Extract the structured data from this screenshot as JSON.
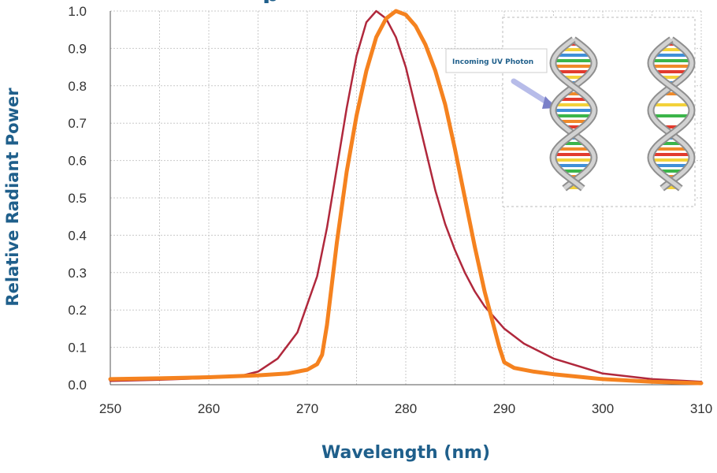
{
  "chart_data": {
    "type": "line",
    "title_fragment": "p",
    "xlabel": "Wavelength (nm)",
    "ylabel": "Relative Radiant Power",
    "xlim": [
      250,
      310
    ],
    "ylim": [
      0,
      1.0
    ],
    "x_ticks": [
      "250",
      "260",
      "270",
      "280",
      "290",
      "300",
      "310"
    ],
    "y_ticks": [
      "0.0",
      "0.1",
      "0.2",
      "0.3",
      "0.4",
      "0.5",
      "0.6",
      "0.7",
      "0.8",
      "0.9",
      "1.0"
    ],
    "grid": true,
    "series": [
      {
        "color": "#b0283c",
        "x": [
          250,
          255,
          260,
          263,
          265,
          267,
          269,
          271,
          272,
          273,
          274,
          275,
          276,
          277,
          278,
          279,
          280,
          281,
          282,
          283,
          284,
          285,
          286,
          287,
          288,
          290,
          292,
          295,
          300,
          305,
          310
        ],
        "y": [
          0.01,
          0.013,
          0.018,
          0.022,
          0.035,
          0.07,
          0.14,
          0.29,
          0.42,
          0.58,
          0.74,
          0.88,
          0.97,
          1.0,
          0.98,
          0.93,
          0.85,
          0.74,
          0.63,
          0.52,
          0.43,
          0.36,
          0.3,
          0.25,
          0.21,
          0.15,
          0.11,
          0.07,
          0.03,
          0.015,
          0.008
        ]
      },
      {
        "color": "#f5821f",
        "x": [
          250,
          255,
          260,
          265,
          268,
          270,
          271,
          271.5,
          272,
          273,
          274,
          275,
          276,
          277,
          278,
          279,
          280,
          281,
          282,
          283,
          284,
          285,
          286,
          287,
          288,
          289,
          289.5,
          290,
          291,
          293,
          295,
          300,
          305,
          310
        ],
        "y": [
          0.015,
          0.017,
          0.02,
          0.025,
          0.03,
          0.04,
          0.055,
          0.08,
          0.16,
          0.38,
          0.57,
          0.72,
          0.84,
          0.93,
          0.98,
          1.0,
          0.99,
          0.96,
          0.91,
          0.84,
          0.75,
          0.63,
          0.5,
          0.37,
          0.25,
          0.15,
          0.1,
          0.06,
          0.045,
          0.035,
          0.028,
          0.015,
          0.008,
          0.004
        ]
      }
    ],
    "inset": {
      "callout": "Incoming UV Photon",
      "helix_colors": [
        "#e23b2e",
        "#f3d23a",
        "#3f8fd8",
        "#3bb54a",
        "#f08a2a"
      ]
    }
  }
}
